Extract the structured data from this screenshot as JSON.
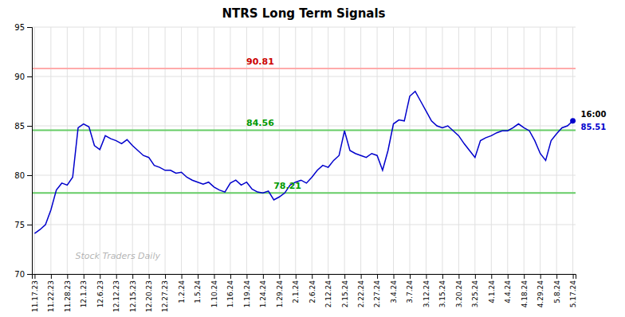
{
  "chart_data": {
    "type": "line",
    "title": "NTRS Long Term Signals",
    "watermark": "Stock Traders Daily",
    "last_label": "16:00",
    "color": "#0000cc",
    "grid": true,
    "ylim": [
      70,
      95
    ],
    "yticks": [
      70,
      75,
      80,
      85,
      90,
      95
    ],
    "reference_lines": [
      {
        "value": 90.81,
        "color": "#ffaaaa",
        "label_color": "#cc0000"
      },
      {
        "value": 84.56,
        "color": "#66cc66",
        "label_color": "#009900"
      },
      {
        "value": 78.21,
        "color": "#66cc66",
        "label_color": "#009900"
      }
    ],
    "categories": [
      "11.17.23",
      null,
      null,
      "11.22.23",
      null,
      null,
      "11.28.23",
      null,
      null,
      "12.1.23",
      null,
      null,
      "12.6.23",
      null,
      null,
      "12.12.23",
      null,
      null,
      "12.15.23",
      null,
      null,
      "12.20.23",
      null,
      null,
      "12.27.23",
      null,
      null,
      "1.2.24",
      null,
      null,
      "1.5.24",
      null,
      null,
      "1.10.24",
      null,
      null,
      "1.16.24",
      null,
      null,
      "1.19.24",
      null,
      null,
      "1.24.24",
      null,
      null,
      "1.29.24",
      null,
      null,
      "2.1.24",
      null,
      null,
      "2.6.24",
      null,
      null,
      "2.12.24",
      null,
      null,
      "2.15.24",
      null,
      null,
      "2.22.24",
      null,
      null,
      "2.27.24",
      null,
      null,
      "3.4.24",
      null,
      null,
      "3.7.24",
      null,
      null,
      "3.12.24",
      null,
      null,
      "3.15.24",
      null,
      null,
      "3.20.24",
      null,
      null,
      "3.25.24",
      null,
      null,
      "4.1.24",
      null,
      null,
      "4.4.24",
      null,
      null,
      "4.18.24",
      null,
      null,
      "4.29.24",
      null,
      null,
      "5.8.24",
      null,
      null,
      "5.17.24"
    ],
    "values": [
      74.1,
      74.5,
      75.0,
      76.5,
      78.5,
      79.2,
      79.0,
      79.8,
      84.8,
      85.2,
      84.9,
      83.0,
      82.6,
      84.0,
      83.7,
      83.5,
      83.2,
      83.6,
      83.0,
      82.5,
      82.0,
      81.8,
      81.0,
      80.8,
      80.5,
      80.5,
      80.2,
      80.3,
      79.8,
      79.5,
      79.3,
      79.1,
      79.3,
      78.8,
      78.5,
      78.3,
      79.2,
      79.5,
      79.0,
      79.3,
      78.6,
      78.3,
      78.2,
      78.4,
      77.5,
      77.8,
      78.2,
      79.0,
      79.3,
      79.5,
      79.2,
      79.8,
      80.5,
      81.0,
      80.8,
      81.5,
      82.0,
      84.5,
      82.5,
      82.2,
      82.0,
      81.8,
      82.2,
      82.0,
      80.5,
      82.5,
      85.2,
      85.6,
      85.5,
      88.0,
      88.5,
      87.5,
      86.5,
      85.5,
      85.0,
      84.8,
      85.0,
      84.5,
      84.0,
      83.2,
      82.5,
      81.8,
      83.5,
      83.8,
      84.0,
      84.3,
      84.5,
      84.5,
      84.8,
      85.2,
      84.8,
      84.5,
      83.5,
      82.2,
      81.5,
      83.5,
      84.2,
      84.8,
      85.0,
      85.51
    ]
  }
}
